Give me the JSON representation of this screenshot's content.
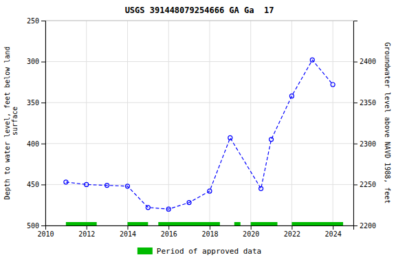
{
  "chart_data": {
    "type": "line",
    "title": "USGS 391448079254666 GA Ga  17",
    "y_label": "Depth to water level, feet below land\n surface",
    "y2_label": "Groundwater level above NAVD 1988, feet",
    "x": [
      2011.0,
      2012.0,
      2013.0,
      2014.0,
      2015.0,
      2016.0,
      2017.0,
      2018.0,
      2019.0,
      2020.5,
      2021.0,
      2022.0,
      2023.0,
      2024.0
    ],
    "series": [
      {
        "color": "#0000FF",
        "line_style": "dashed",
        "marker": "circle",
        "values": [
          447,
          450,
          451,
          452,
          478,
          480,
          472,
          458,
          393,
          455,
          395,
          342,
          298,
          328
        ]
      }
    ],
    "periods": {
      "name": "Period of approved data",
      "color": "#00BB00",
      "ranges": [
        [
          2011.0,
          2012.5
        ],
        [
          2014.0,
          2015.0
        ],
        [
          2015.5,
          2018.5
        ],
        [
          2019.2,
          2019.5
        ],
        [
          2020.0,
          2021.3
        ],
        [
          2022.0,
          2024.5
        ]
      ]
    },
    "xlim": [
      2010,
      2025
    ],
    "xticks": [
      2010,
      2012,
      2014,
      2016,
      2018,
      2020,
      2022,
      2024
    ],
    "ylim": [
      500,
      250
    ],
    "yticks": [
      250,
      300,
      350,
      400,
      450,
      500
    ],
    "y2lim": [
      2200,
      2450
    ],
    "y2ticks": [
      2200,
      2250,
      2300,
      2350,
      2400
    ],
    "grid": true,
    "legend": "bottom"
  }
}
